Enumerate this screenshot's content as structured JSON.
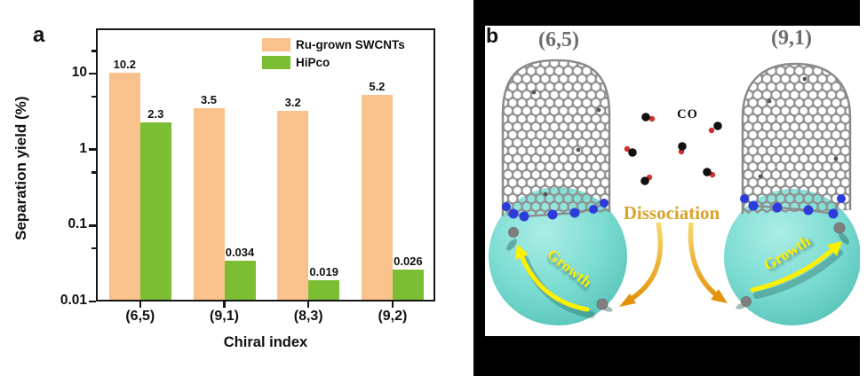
{
  "panel_a": {
    "label": "a"
  },
  "chart_data": {
    "type": "bar",
    "title": "",
    "xlabel": "Chiral index",
    "ylabel": "Separation yield (%)",
    "yscale": "log",
    "ylim": [
      0.01,
      39.5
    ],
    "yticks": [
      10,
      1,
      0.1,
      0.01
    ],
    "ytick_labels": [
      "10",
      "1",
      "0.1",
      "0.01"
    ],
    "minor_yticks": [
      20,
      5,
      0.5,
      0.05
    ],
    "categories": [
      "(6,5)",
      "(9,1)",
      "(8,3)",
      "(9,2)"
    ],
    "series": [
      {
        "name": "Ru-grown SWCNTs",
        "color": "#F9C28C",
        "values": [
          10.2,
          3.5,
          3.2,
          5.2
        ]
      },
      {
        "name": "HiPco",
        "color": "#7CBE33",
        "values": [
          2.3,
          0.034,
          0.019,
          0.026
        ]
      }
    ],
    "bar_value_labels": [
      [
        "10.2",
        "3.5",
        "3.2",
        "5.2"
      ],
      [
        "2.3",
        "0.034",
        "0.019",
        "0.026"
      ]
    ],
    "legend_position": "top-right",
    "grid": false
  },
  "panel_b": {
    "label": "b",
    "tube_left_label": "(6,5)",
    "tube_right_label": "(9,1)",
    "co_label": "CO",
    "dissociation_label": "Dissociation",
    "growth_left_label": "Growth",
    "growth_right_label": "Growth"
  },
  "colors": {
    "ru_orange": "#F9C28C",
    "hipco_green": "#7CBE33",
    "axis_black": "#151515",
    "sphere_cyan": "#7BDCD2",
    "gold_arrow": "#E2930A",
    "gold_text": "#D9A428",
    "growth_yellow": "#FDF000",
    "tube_gray": "#8A8A8A",
    "nitrogen_blue": "#2B3BDC",
    "co_carbon_black": "#111111",
    "co_oxygen_red": "#D03030",
    "chiral_label_gray": "#6D6D6D"
  }
}
